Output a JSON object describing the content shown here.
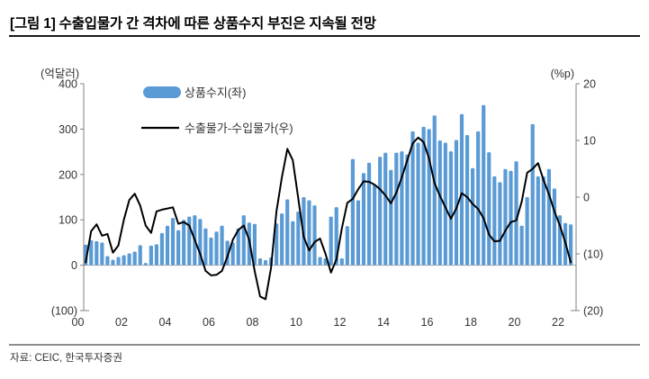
{
  "page": {
    "title": "[그림 1] 수출입물가 간 격차에 따른 상품수지 부진은 지속될 전망",
    "source": "자료: CEIC, 한국투자증권"
  },
  "colors": {
    "bar": "#5B9BD5",
    "line": "#000000",
    "axis": "#808080",
    "zero_line": "#A6A6A6",
    "text": "#333333"
  },
  "chart_data": {
    "type": "bar",
    "subtype": "dual-axis bar + line",
    "period": "2000Q1-2022Q2 quarterly",
    "grid": false,
    "legend_position": "top-left inside plot",
    "x_axis": {
      "tick_labels": [
        "00",
        "02",
        "04",
        "06",
        "08",
        "10",
        "12",
        "14",
        "16",
        "18",
        "20",
        "22"
      ]
    },
    "left_axis": {
      "unit_label": "(억달러)",
      "min": -100,
      "max": 400,
      "tick_values": [
        400,
        300,
        200,
        100,
        0,
        -100
      ],
      "tick_labels": [
        "400",
        "300",
        "200",
        "100",
        "0",
        "(100)"
      ]
    },
    "right_axis": {
      "unit_label": "(%p)",
      "min": -20,
      "max": 20,
      "tick_values": [
        20,
        10,
        0,
        -10,
        -20
      ],
      "tick_labels": [
        "20",
        "10",
        "0",
        "(10)",
        "(20)"
      ]
    },
    "series": [
      {
        "name": "상품수지(좌)",
        "type": "bar",
        "axis": "left",
        "color": "#5B9BD5",
        "values": [
          45,
          55,
          53,
          50,
          20,
          12,
          18,
          22,
          26,
          30,
          44,
          5,
          43,
          46,
          71,
          87,
          104,
          77,
          100,
          107,
          110,
          102,
          81,
          61,
          74,
          87,
          54,
          50,
          81,
          110,
          94,
          91,
          15,
          11,
          17,
          92,
          114,
          145,
          97,
          118,
          150,
          143,
          132,
          18,
          15,
          107,
          128,
          15,
          86,
          234,
          143,
          203,
          226,
          177,
          239,
          248,
          210,
          248,
          251,
          244,
          295,
          270,
          305,
          300,
          330,
          275,
          270,
          251,
          276,
          333,
          287,
          214,
          295,
          353,
          249,
          196,
          183,
          212,
          208,
          229,
          87,
          150,
          311,
          196,
          196,
          212,
          169,
          110,
          93,
          90
        ]
      },
      {
        "name": "수출물가-수입물가(우)",
        "type": "line",
        "axis": "right",
        "color": "#000000",
        "values": [
          -11.5,
          -6,
          -4.8,
          -6.8,
          -6.5,
          -9.8,
          -8.5,
          -4,
          -0.5,
          0.6,
          -1.5,
          -5,
          -6.3,
          -2.5,
          -2.2,
          -2,
          -1.8,
          -4.7,
          -4.4,
          -5,
          -7.5,
          -10,
          -13,
          -13.8,
          -13.7,
          -13,
          -10.5,
          -7.5,
          -5.8,
          -5,
          -7.5,
          -13,
          -17.5,
          -18,
          -12.5,
          -2.5,
          3.5,
          8.5,
          6.5,
          -0.2,
          -7,
          -9.4,
          -7.9,
          -7.3,
          -10,
          -13.3,
          -11,
          -5.5,
          -1,
          -0.3,
          1.4,
          2.8,
          2.7,
          2.2,
          1.4,
          0.3,
          -1.1,
          0.8,
          3.5,
          6.5,
          9.5,
          10.5,
          9.7,
          6.8,
          2.5,
          0.2,
          -1.8,
          -3.8,
          -2,
          0.7,
          0,
          -1.2,
          -2.1,
          -3.7,
          -6.6,
          -7.8,
          -7.7,
          -5.9,
          -4.4,
          -4.1,
          -0.8,
          4.3,
          5,
          6,
          3,
          0.5,
          -2.5,
          -5,
          -8,
          -11.5
        ]
      }
    ]
  }
}
